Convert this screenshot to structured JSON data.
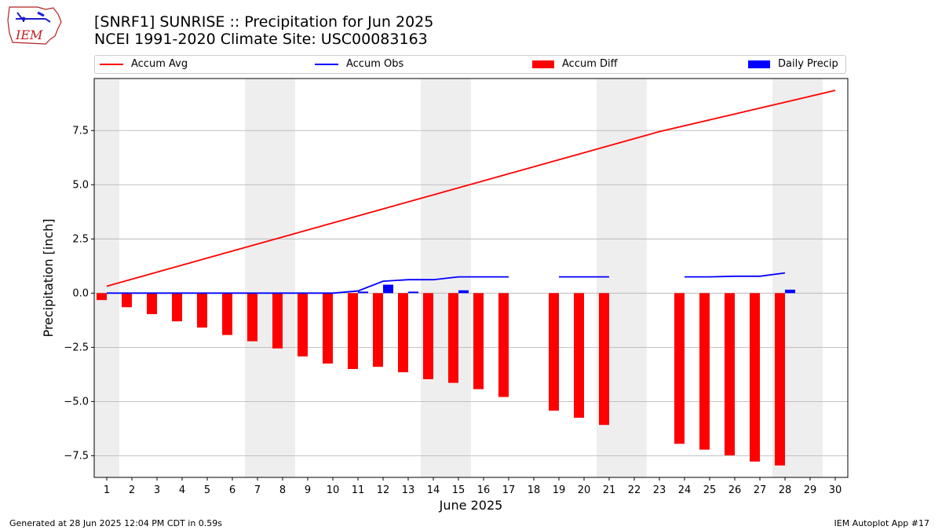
{
  "header": {
    "title_line1": "[SNRF1] SUNRISE :: Precipitation for Jun 2025",
    "title_line2": "NCEI 1991-2020 Climate Site: USC00083163",
    "logo_text": "IEM"
  },
  "footer": {
    "left": "Generated at 28 Jun 2025 12:04 PM CDT in 0.59s",
    "right": "IEM Autoplot App #17"
  },
  "colors": {
    "avg": "#ff0000",
    "obs": "#0000ff",
    "diff": "#ff0000",
    "daily": "#0000ff",
    "weekend_shade": "#eeeeee",
    "grid": "#b0b0b0"
  },
  "chart_data": {
    "type": "bar",
    "xlabel": "June 2025",
    "ylabel": "Precipitation [inch]",
    "ylim": [
      -8.5,
      9.9
    ],
    "xlim": [
      0.5,
      30.5
    ],
    "grid": true,
    "legend_placement": "top",
    "yticks": [
      -7.5,
      -5.0,
      -2.5,
      0.0,
      2.5,
      5.0,
      7.5
    ],
    "ytick_labels": [
      "−7.5",
      "−5.0",
      "−2.5",
      "0.0",
      "2.5",
      "5.0",
      "7.5"
    ],
    "xticks": [
      1,
      2,
      3,
      4,
      5,
      6,
      7,
      8,
      9,
      10,
      11,
      12,
      13,
      14,
      15,
      16,
      17,
      18,
      19,
      20,
      21,
      22,
      23,
      24,
      25,
      26,
      27,
      28,
      29,
      30
    ],
    "shaded_days": [
      [
        0.5,
        1.5
      ],
      [
        6.5,
        8.5
      ],
      [
        13.5,
        15.5
      ],
      [
        20.5,
        22.5
      ],
      [
        27.5,
        29.5
      ]
    ],
    "legend": [
      {
        "name": "Accum Avg",
        "kind": "line",
        "color": "#ff0000"
      },
      {
        "name": "Accum Obs",
        "kind": "line",
        "color": "#0000ff"
      },
      {
        "name": "Accum Diff",
        "kind": "box",
        "color": "#ff0000"
      },
      {
        "name": "Daily Precip",
        "kind": "box",
        "color": "#0000ff"
      }
    ],
    "accum_avg": {
      "name": "Accum Avg",
      "x": [
        1,
        23,
        30
      ],
      "y": [
        0.32,
        7.45,
        9.35
      ]
    },
    "accum_obs": {
      "name": "Accum Obs",
      "segments": [
        {
          "x": [
            1,
            2,
            3,
            4,
            5,
            6,
            7,
            8,
            9,
            10,
            11,
            12,
            13,
            14,
            15,
            16,
            17
          ],
          "y": [
            0,
            0,
            0,
            0,
            0,
            0,
            0,
            0,
            0,
            0,
            0.1,
            0.55,
            0.62,
            0.62,
            0.75,
            0.75,
            0.75
          ]
        },
        {
          "x": [
            19,
            20,
            21
          ],
          "y": [
            0.75,
            0.75,
            0.75
          ]
        },
        {
          "x": [
            24,
            25,
            26,
            27,
            28
          ],
          "y": [
            0.75,
            0.75,
            0.78,
            0.78,
            0.93
          ]
        }
      ]
    },
    "accum_diff": {
      "name": "Accum Diff",
      "x": [
        1,
        2,
        3,
        4,
        5,
        6,
        7,
        8,
        9,
        10,
        11,
        12,
        13,
        14,
        15,
        16,
        17,
        19,
        20,
        21,
        24,
        25,
        26,
        27,
        28
      ],
      "y": [
        -0.32,
        -0.65,
        -0.97,
        -1.3,
        -1.59,
        -1.93,
        -2.22,
        -2.55,
        -2.92,
        -3.25,
        -3.5,
        -3.4,
        -3.65,
        -3.97,
        -4.14,
        -4.43,
        -4.79,
        -5.42,
        -5.75,
        -6.08,
        -6.95,
        -7.22,
        -7.48,
        -7.77,
        -7.95
      ]
    },
    "daily_precip": {
      "name": "Daily Precip",
      "x": [
        11,
        12,
        13,
        15,
        28
      ],
      "y": [
        0.07,
        0.39,
        0.07,
        0.13,
        0.16
      ]
    }
  }
}
